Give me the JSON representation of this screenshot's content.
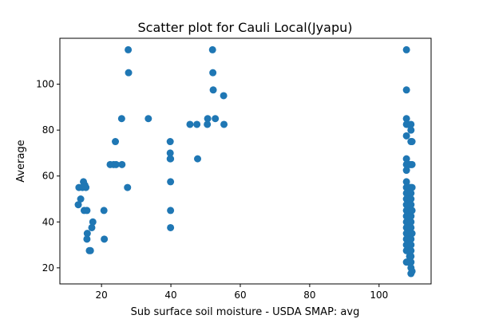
{
  "chart_data": {
    "type": "scatter",
    "title": "Scatter plot for Cauli Local(Jyapu)",
    "xlabel": "Sub surface soil moisture - USDA SMAP: avg",
    "ylabel": "Average",
    "xlim": [
      8,
      115
    ],
    "ylim": [
      13,
      120
    ],
    "x_ticks": [
      20,
      40,
      60,
      80,
      100
    ],
    "y_ticks": [
      20,
      40,
      60,
      80,
      100
    ],
    "grid": false,
    "legend": "none",
    "marker_color": "#1f77b4",
    "points": [
      {
        "x": 13.3,
        "y": 47.5
      },
      {
        "x": 13.5,
        "y": 55
      },
      {
        "x": 14,
        "y": 50
      },
      {
        "x": 14.5,
        "y": 55
      },
      {
        "x": 14.8,
        "y": 57.5
      },
      {
        "x": 15,
        "y": 45
      },
      {
        "x": 15.2,
        "y": 56
      },
      {
        "x": 15.5,
        "y": 55
      },
      {
        "x": 15.8,
        "y": 45
      },
      {
        "x": 15.8,
        "y": 32.5
      },
      {
        "x": 15.9,
        "y": 35
      },
      {
        "x": 16.5,
        "y": 27.5
      },
      {
        "x": 16.8,
        "y": 27.5
      },
      {
        "x": 17.2,
        "y": 37.5
      },
      {
        "x": 17.5,
        "y": 40
      },
      {
        "x": 20.7,
        "y": 45
      },
      {
        "x": 20.8,
        "y": 32.5
      },
      {
        "x": 22.5,
        "y": 65
      },
      {
        "x": 23.5,
        "y": 65
      },
      {
        "x": 24,
        "y": 75
      },
      {
        "x": 24.2,
        "y": 65
      },
      {
        "x": 25.8,
        "y": 85
      },
      {
        "x": 25.9,
        "y": 65
      },
      {
        "x": 27.5,
        "y": 55
      },
      {
        "x": 27.7,
        "y": 115
      },
      {
        "x": 27.8,
        "y": 105
      },
      {
        "x": 33.5,
        "y": 85
      },
      {
        "x": 39.8,
        "y": 75
      },
      {
        "x": 39.8,
        "y": 70
      },
      {
        "x": 39.8,
        "y": 67.5
      },
      {
        "x": 39.9,
        "y": 67.5
      },
      {
        "x": 39.9,
        "y": 57.5
      },
      {
        "x": 39.9,
        "y": 45
      },
      {
        "x": 39.9,
        "y": 37.5
      },
      {
        "x": 45.5,
        "y": 82.5
      },
      {
        "x": 47.5,
        "y": 82.5
      },
      {
        "x": 47.7,
        "y": 67.5
      },
      {
        "x": 50.5,
        "y": 82.5
      },
      {
        "x": 50.6,
        "y": 85
      },
      {
        "x": 52,
        "y": 115
      },
      {
        "x": 52.1,
        "y": 105
      },
      {
        "x": 52.2,
        "y": 97.5
      },
      {
        "x": 52.8,
        "y": 85
      },
      {
        "x": 55.2,
        "y": 95
      },
      {
        "x": 55.3,
        "y": 82.5
      },
      {
        "x": 107.9,
        "y": 115
      },
      {
        "x": 107.9,
        "y": 97.5
      },
      {
        "x": 107.9,
        "y": 85
      },
      {
        "x": 107.9,
        "y": 82.5
      },
      {
        "x": 107.9,
        "y": 77.5
      },
      {
        "x": 107.9,
        "y": 67.5
      },
      {
        "x": 107.9,
        "y": 65
      },
      {
        "x": 107.9,
        "y": 62.5
      },
      {
        "x": 107.9,
        "y": 57.5
      },
      {
        "x": 107.9,
        "y": 55
      },
      {
        "x": 107.9,
        "y": 52.5
      },
      {
        "x": 107.9,
        "y": 50
      },
      {
        "x": 107.9,
        "y": 47.5
      },
      {
        "x": 107.9,
        "y": 45
      },
      {
        "x": 107.9,
        "y": 42.5
      },
      {
        "x": 107.9,
        "y": 40
      },
      {
        "x": 107.9,
        "y": 37.5
      },
      {
        "x": 107.9,
        "y": 35
      },
      {
        "x": 107.9,
        "y": 32.5
      },
      {
        "x": 107.9,
        "y": 30
      },
      {
        "x": 107.9,
        "y": 27.5
      },
      {
        "x": 107.9,
        "y": 22.5
      },
      {
        "x": 108.3,
        "y": 82.5
      },
      {
        "x": 108.3,
        "y": 55
      },
      {
        "x": 108.3,
        "y": 47.5
      },
      {
        "x": 108.3,
        "y": 42.5
      },
      {
        "x": 108.3,
        "y": 37.5
      },
      {
        "x": 108.3,
        "y": 32.5
      },
      {
        "x": 108.3,
        "y": 27.5
      },
      {
        "x": 108.3,
        "y": 22.5
      },
      {
        "x": 108.8,
        "y": 65
      },
      {
        "x": 108.8,
        "y": 55
      },
      {
        "x": 108.8,
        "y": 50
      },
      {
        "x": 108.8,
        "y": 45
      },
      {
        "x": 108.8,
        "y": 40
      },
      {
        "x": 108.8,
        "y": 35
      },
      {
        "x": 108.8,
        "y": 30
      },
      {
        "x": 108.8,
        "y": 25
      },
      {
        "x": 109.2,
        "y": 82.5
      },
      {
        "x": 109.2,
        "y": 80
      },
      {
        "x": 109.2,
        "y": 75
      },
      {
        "x": 109.2,
        "y": 65
      },
      {
        "x": 109.2,
        "y": 55
      },
      {
        "x": 109.2,
        "y": 52.5
      },
      {
        "x": 109.2,
        "y": 50
      },
      {
        "x": 109.2,
        "y": 47.5
      },
      {
        "x": 109.2,
        "y": 45
      },
      {
        "x": 109.2,
        "y": 42.5
      },
      {
        "x": 109.2,
        "y": 40
      },
      {
        "x": 109.2,
        "y": 37.5
      },
      {
        "x": 109.2,
        "y": 35
      },
      {
        "x": 109.2,
        "y": 32.5
      },
      {
        "x": 109.2,
        "y": 30
      },
      {
        "x": 109.2,
        "y": 27.5
      },
      {
        "x": 109.2,
        "y": 25
      },
      {
        "x": 109.2,
        "y": 22.5
      },
      {
        "x": 109.2,
        "y": 20
      },
      {
        "x": 109.2,
        "y": 17.5
      },
      {
        "x": 109.5,
        "y": 75
      },
      {
        "x": 109.5,
        "y": 65
      },
      {
        "x": 109.5,
        "y": 55
      },
      {
        "x": 109.5,
        "y": 45
      },
      {
        "x": 109.5,
        "y": 35
      },
      {
        "x": 109.5,
        "y": 18.5
      }
    ]
  }
}
